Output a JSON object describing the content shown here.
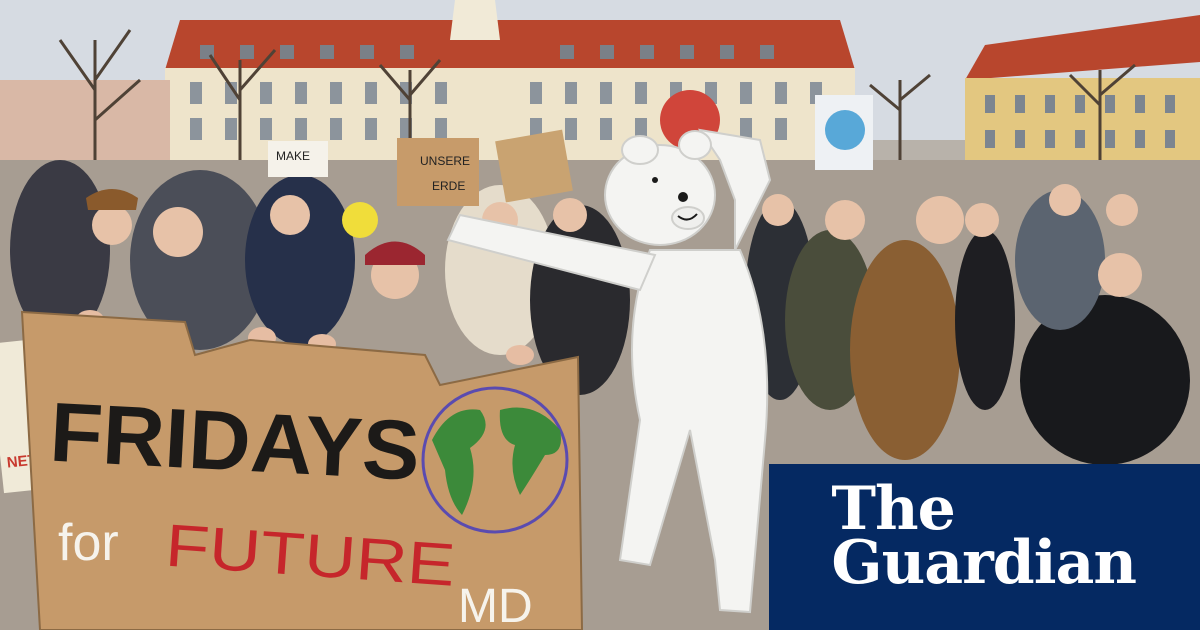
{
  "photo": {
    "banner_line_1": "FRIDAYS",
    "banner_line_2_white": "for",
    "banner_line_2_red": "FUTURE",
    "banner_line_2_tag": "MD",
    "sign_make": "MAKE",
    "sign_unsere": "UNSERE",
    "sign_erde": "ERDE",
    "sign_left_fragment": "NETEN",
    "colors": {
      "sky": "#d9dde3",
      "building": "#efe6cf",
      "roof": "#b8462d",
      "cardboard": "#c89a6c",
      "banner_red": "#c6262b",
      "globe_green": "#3c8a3a",
      "bear": "#f4f4f2"
    }
  },
  "brand": {
    "line1": "The",
    "line2": "Guardian",
    "background": "#052962"
  }
}
